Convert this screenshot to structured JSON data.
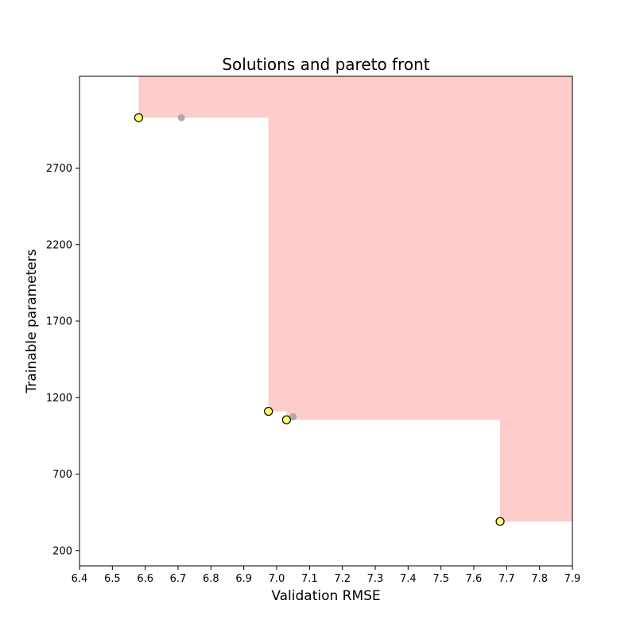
{
  "chart_data": {
    "type": "scatter",
    "title": "Solutions and pareto front",
    "xlabel": "Validation RMSE",
    "ylabel": "Trainable parameters",
    "xlim": [
      6.4,
      7.9
    ],
    "ylim": [
      100,
      3300
    ],
    "x_ticks": [
      "6.4",
      "6.5",
      "6.6",
      "6.7",
      "6.8",
      "6.9",
      "7.0",
      "7.1",
      "7.2",
      "7.3",
      "7.4",
      "7.5",
      "7.6",
      "7.7",
      "7.8",
      "7.9"
    ],
    "y_ticks": [
      "200",
      "700",
      "1200",
      "1700",
      "2200",
      "2700"
    ],
    "grid": false,
    "series": [
      {
        "role": "pareto-front",
        "color": "#ffff66",
        "edge_color": "#000000",
        "points": [
          {
            "x": 6.58,
            "y": 3030
          },
          {
            "x": 6.975,
            "y": 1110
          },
          {
            "x": 7.03,
            "y": 1055
          },
          {
            "x": 7.68,
            "y": 390
          }
        ]
      },
      {
        "role": "other-solutions",
        "color": "#aaaaaa",
        "points": [
          {
            "x": 6.71,
            "y": 3030
          },
          {
            "x": 7.05,
            "y": 1075
          }
        ]
      }
    ],
    "dominated_region_color": "#ffcccc"
  }
}
